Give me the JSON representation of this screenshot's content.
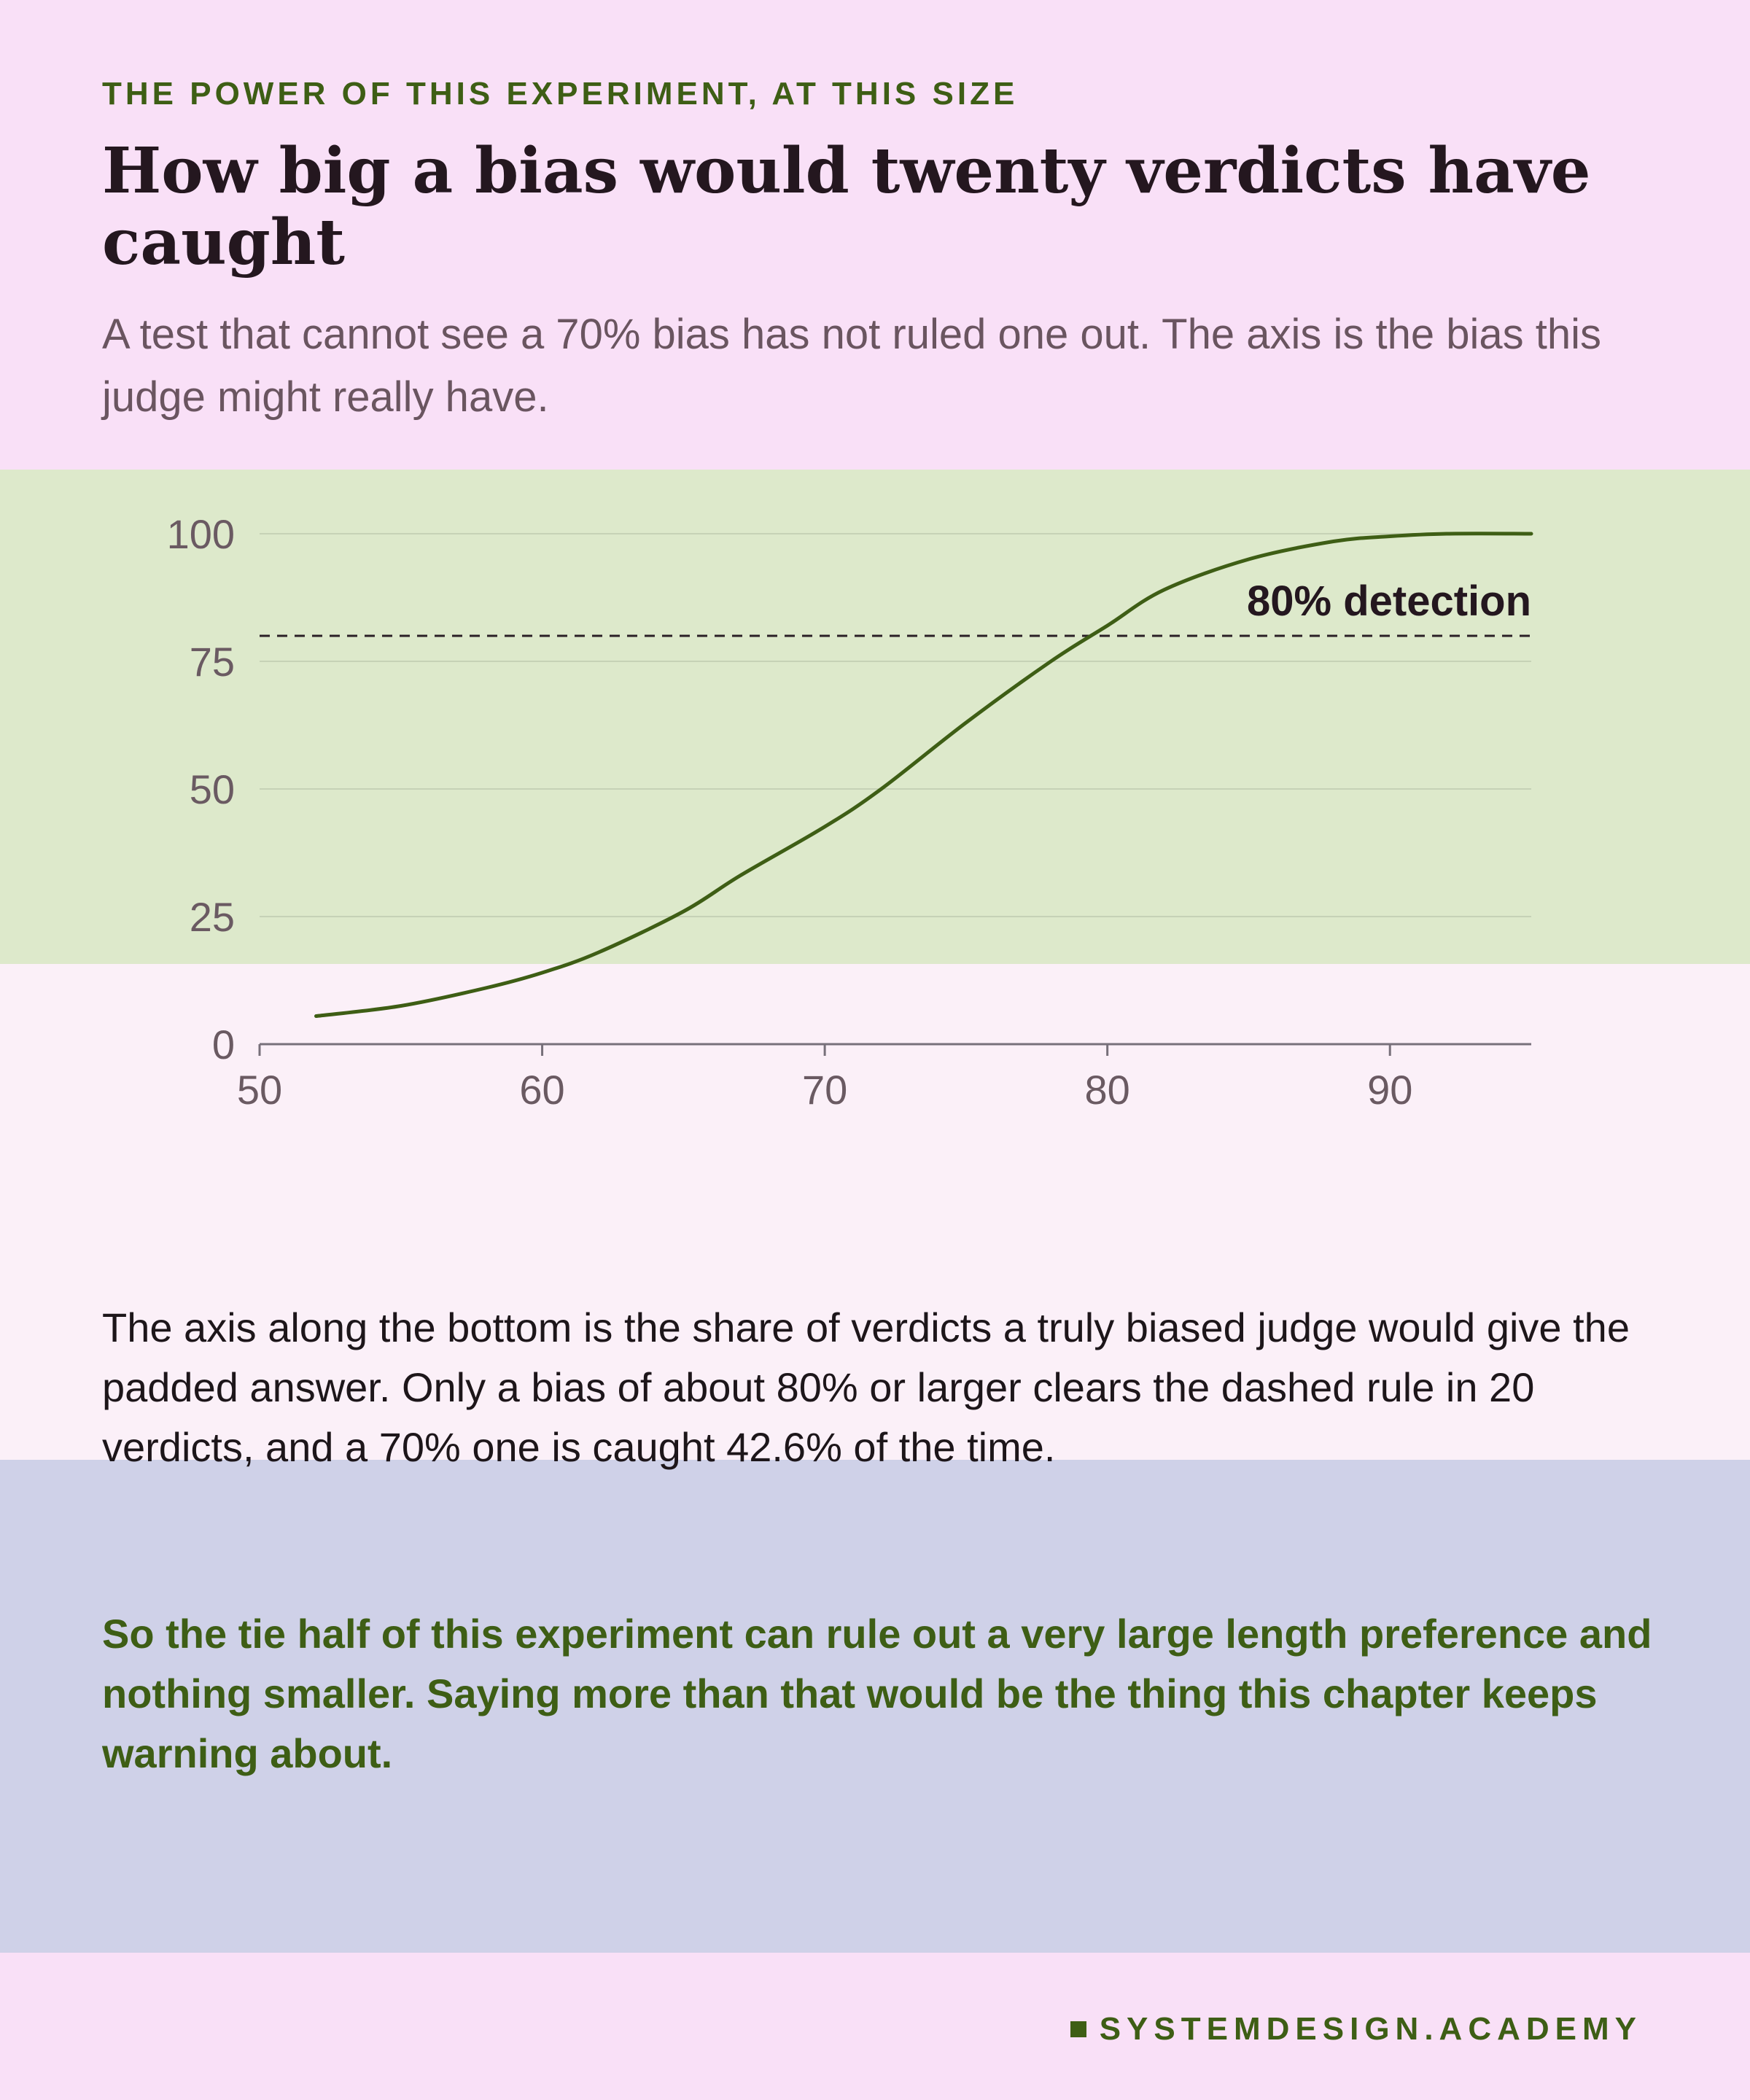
{
  "header": {
    "kicker": "THE POWER OF THIS EXPERIMENT, AT THIS SIZE",
    "title": "How big a bias would twenty verdicts have caught",
    "subtitle": "A test that cannot see a 70% bias has not ruled one out. The axis is the bias this judge might really have."
  },
  "chart_data": {
    "type": "line",
    "xlim": [
      50,
      95
    ],
    "ylim": [
      0,
      100
    ],
    "x_ticks": [
      50,
      60,
      70,
      80,
      90
    ],
    "y_ticks": [
      0,
      25,
      50,
      75,
      100
    ],
    "grid": true,
    "series": [
      {
        "x": [
          52,
          55,
          58,
          60,
          62,
          65,
          67,
          70,
          72,
          75,
          78,
          80,
          82,
          85,
          88,
          90,
          92,
          95
        ],
        "y": [
          5.5,
          7.5,
          11,
          14,
          18,
          26,
          33,
          42.6,
          50,
          63,
          75,
          82,
          89,
          95,
          98.5,
          99.5,
          100,
          100
        ]
      }
    ],
    "reference_line": {
      "y": 80,
      "label": "80% detection",
      "style": "dashed"
    }
  },
  "body": {
    "text": "The axis along the bottom is the share of verdicts a truly biased judge would give the padded answer. Only a bias of about 80% or larger clears the dashed rule in 20 verdicts, and a 70% one is caught 42.6% of the time."
  },
  "conclusion": {
    "text": "So the tie half of this experiment can rule out a very large length preference and nothing smaller. Saying more than that would be the thing this chapter keeps warning about."
  },
  "footer": {
    "brand": "SYSTEMDESIGN.ACADEMY"
  },
  "colors": {
    "accent": "#3e5e15",
    "background": "#f9e0f7",
    "chart_band": "#dde9cb",
    "text_band": "#fbf0f8",
    "conclusion_band": "#cfd1e8"
  }
}
